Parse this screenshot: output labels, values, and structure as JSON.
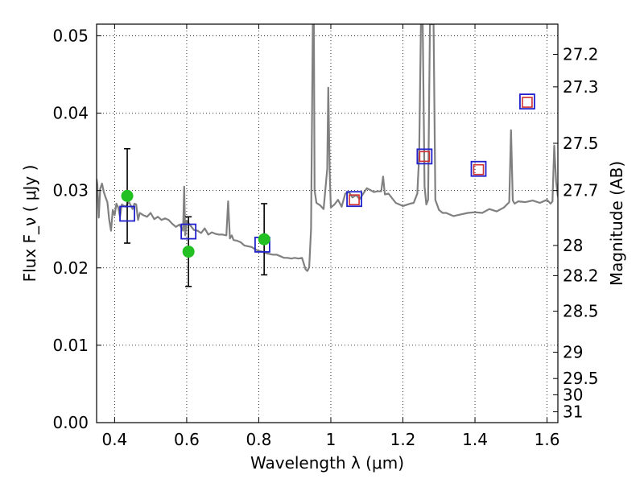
{
  "chart_data": {
    "type": "scatter",
    "xlabel": "Wavelength  λ (μm)",
    "ylabel": "Flux  F_ν  ( μJy )",
    "ylabel_right": "Magnitude (AB)",
    "xlim": [
      0.35,
      1.63
    ],
    "ylim": [
      0.0,
      0.0515
    ],
    "grid": true,
    "x_ticks": [
      0.4,
      0.6,
      0.8,
      1.0,
      1.2,
      1.4,
      1.6
    ],
    "x_tick_labels": [
      "0.4",
      "0.6",
      "0.8",
      "1",
      "1.2",
      "1.4",
      "1.6"
    ],
    "y_ticks": [
      0.0,
      0.01,
      0.02,
      0.03,
      0.04,
      0.05
    ],
    "y_tick_labels": [
      "0.00",
      "0.01",
      "0.02",
      "0.03",
      "0.04",
      "0.05"
    ],
    "right_ticks": [
      {
        "label": "27.2",
        "flux": 0.0476
      },
      {
        "label": "27.3",
        "flux": 0.0434
      },
      {
        "label": "27.5",
        "flux": 0.0361
      },
      {
        "label": "27.7",
        "flux": 0.03
      },
      {
        "label": "28",
        "flux": 0.0229
      },
      {
        "label": "28.2",
        "flux": 0.019
      },
      {
        "label": "28.5",
        "flux": 0.0144
      },
      {
        "label": "29",
        "flux": 0.0091
      },
      {
        "label": "29.5",
        "flux": 0.0057
      },
      {
        "label": "30",
        "flux": 0.0036
      },
      {
        "label": "31",
        "flux": 0.0014
      }
    ],
    "series": [
      {
        "kind": "spectrum-line",
        "color": "#808080",
        "x": [
          0.35,
          0.352,
          0.356,
          0.36,
          0.365,
          0.37,
          0.375,
          0.38,
          0.385,
          0.39,
          0.395,
          0.4,
          0.405,
          0.41,
          0.415,
          0.42,
          0.43,
          0.44,
          0.45,
          0.455,
          0.46,
          0.465,
          0.47,
          0.48,
          0.49,
          0.5,
          0.51,
          0.52,
          0.53,
          0.54,
          0.55,
          0.56,
          0.57,
          0.58,
          0.59,
          0.593,
          0.596,
          0.6,
          0.61,
          0.62,
          0.63,
          0.64,
          0.65,
          0.66,
          0.67,
          0.68,
          0.69,
          0.7,
          0.71,
          0.715,
          0.72,
          0.725,
          0.73,
          0.74,
          0.75,
          0.76,
          0.77,
          0.78,
          0.79,
          0.8,
          0.81,
          0.82,
          0.83,
          0.84,
          0.85,
          0.86,
          0.87,
          0.88,
          0.89,
          0.9,
          0.91,
          0.92,
          0.93,
          0.935,
          0.94,
          0.945,
          0.95,
          0.953,
          0.955,
          0.96,
          0.97,
          0.98,
          0.99,
          0.993,
          0.997,
          1.0,
          1.01,
          1.02,
          1.03,
          1.04,
          1.05,
          1.06,
          1.07,
          1.08,
          1.09,
          1.1,
          1.12,
          1.13,
          1.14,
          1.145,
          1.15,
          1.16,
          1.18,
          1.2,
          1.22,
          1.23,
          1.24,
          1.245,
          1.25,
          1.255,
          1.26,
          1.265,
          1.27,
          1.275,
          1.28,
          1.285,
          1.29,
          1.3,
          1.31,
          1.32,
          1.34,
          1.36,
          1.38,
          1.4,
          1.42,
          1.44,
          1.46,
          1.48,
          1.495,
          1.5,
          1.505,
          1.51,
          1.52,
          1.54,
          1.56,
          1.58,
          1.6,
          1.61,
          1.615,
          1.62,
          1.625,
          1.63
        ],
        "y": [
          0.0315,
          0.0308,
          0.0265,
          0.0302,
          0.0309,
          0.0298,
          0.0291,
          0.0285,
          0.0262,
          0.0248,
          0.0275,
          0.0268,
          0.0283,
          0.0278,
          0.0266,
          0.0282,
          0.0279,
          0.0285,
          0.0276,
          0.0283,
          0.0282,
          0.0262,
          0.0271,
          0.0268,
          0.0266,
          0.0271,
          0.0263,
          0.0266,
          0.0262,
          0.0264,
          0.0262,
          0.0257,
          0.0253,
          0.0256,
          0.0248,
          0.0305,
          0.0242,
          0.0261,
          0.0255,
          0.0249,
          0.0248,
          0.0245,
          0.0251,
          0.0243,
          0.0246,
          0.0244,
          0.0243,
          0.0243,
          0.0242,
          0.0286,
          0.0238,
          0.0242,
          0.0236,
          0.0235,
          0.0233,
          0.0229,
          0.0228,
          0.0227,
          0.0224,
          0.0222,
          0.0221,
          0.0219,
          0.0218,
          0.0217,
          0.0217,
          0.0215,
          0.0213,
          0.0213,
          0.0212,
          0.0213,
          0.0212,
          0.0213,
          0.0198,
          0.0196,
          0.0201,
          0.025,
          0.0515,
          0.0515,
          0.03,
          0.0284,
          0.0281,
          0.0276,
          0.0328,
          0.0433,
          0.0322,
          0.0278,
          0.0282,
          0.0288,
          0.0279,
          0.0296,
          0.0298,
          0.0291,
          0.0294,
          0.0289,
          0.0296,
          0.0303,
          0.0298,
          0.0299,
          0.0299,
          0.0318,
          0.0295,
          0.0296,
          0.0284,
          0.028,
          0.0283,
          0.0284,
          0.0296,
          0.0345,
          0.0515,
          0.0515,
          0.0305,
          0.0282,
          0.0288,
          0.0515,
          0.0515,
          0.0515,
          0.0288,
          0.0275,
          0.0271,
          0.0271,
          0.0267,
          0.0269,
          0.0271,
          0.0272,
          0.0271,
          0.0276,
          0.0273,
          0.0278,
          0.0285,
          0.0378,
          0.0287,
          0.0283,
          0.0286,
          0.0285,
          0.0287,
          0.0284,
          0.0288,
          0.0283,
          0.0286,
          0.0358,
          0.0312,
          0.0292
        ]
      },
      {
        "kind": "observed-points",
        "marker": "circle",
        "color": "#22c022",
        "x": [
          0.435,
          0.605,
          0.815
        ],
        "y": [
          0.0293,
          0.0221,
          0.0237
        ],
        "yerr": [
          0.0061,
          0.0045,
          0.0046
        ]
      },
      {
        "kind": "model-bandpass-squares",
        "marker": "open-square",
        "color": "#2020cc",
        "x": [
          0.435,
          0.605,
          0.81,
          1.065,
          1.26,
          1.41,
          1.545
        ],
        "y": [
          0.027,
          0.0247,
          0.023,
          0.0289,
          0.0344,
          0.0328,
          0.0415
        ]
      },
      {
        "kind": "model-inner-squares",
        "marker": "open-square",
        "color": "#d03030",
        "x": [
          1.065,
          1.26,
          1.41,
          1.545
        ],
        "y": [
          0.0288,
          0.0344,
          0.0327,
          0.0414
        ]
      }
    ]
  }
}
